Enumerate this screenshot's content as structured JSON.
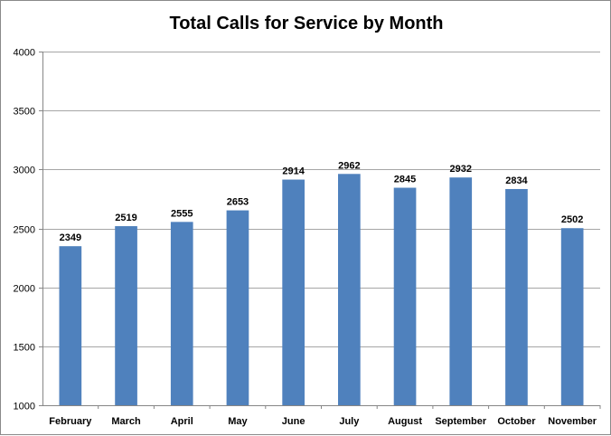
{
  "chart_data": {
    "type": "bar",
    "title": "Total Calls for Service by Month",
    "xlabel": "",
    "ylabel": "",
    "categories": [
      "February",
      "March",
      "April",
      "May",
      "June",
      "July",
      "August",
      "September",
      "October",
      "November"
    ],
    "values": [
      2349,
      2519,
      2555,
      2653,
      2914,
      2962,
      2845,
      2932,
      2834,
      2502
    ],
    "ylim": [
      1000,
      4000
    ],
    "yticks": [
      1000,
      1500,
      2000,
      2500,
      3000,
      3500,
      4000
    ],
    "grid": true,
    "legend": "none",
    "bar_color": "#4f81bd",
    "grid_color": "#a6a6a6"
  }
}
